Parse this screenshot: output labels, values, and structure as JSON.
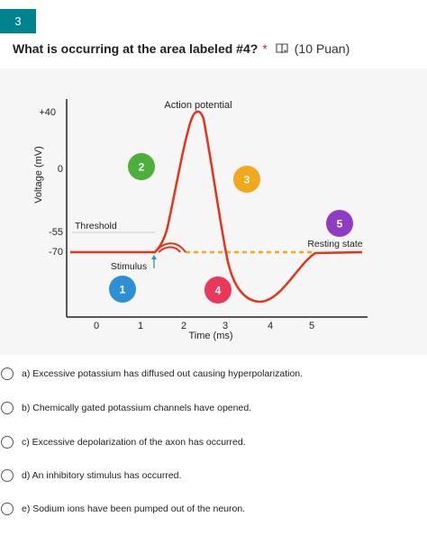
{
  "question": {
    "number": "3",
    "title": "What is occurring at the area labeled #4?",
    "required_mark": "*",
    "points": "(10 Puan)"
  },
  "figure": {
    "title": "Action potential",
    "y_axis_label": "Voltage (mV)",
    "x_axis_label": "Time (ms)",
    "y_ticks": [
      "+40",
      "0",
      "-55",
      "-70"
    ],
    "x_ticks": [
      "0",
      "1",
      "2",
      "3",
      "4",
      "5"
    ],
    "threshold_label": "Threshold",
    "resting_label": "Resting state",
    "stimulus_label": "Stimulus",
    "markers": [
      {
        "label": "1",
        "color": "#2f8fd6"
      },
      {
        "label": "2",
        "color": "#4caf3a"
      },
      {
        "label": "3",
        "color": "#f2a81d"
      },
      {
        "label": "4",
        "color": "#e8395a"
      },
      {
        "label": "5",
        "color": "#8e3cc4"
      }
    ],
    "curve_color": "#e53319",
    "resting_dash_color": "#f2a81d"
  },
  "options": [
    {
      "label": "a) Excessive potassium has diffused out causing hyperpolarization."
    },
    {
      "label": "b) Chemically gated potassium channels have opened."
    },
    {
      "label": "c) Excessive depolarization of the axon has occurred."
    },
    {
      "label": "d) An inhibitory stimulus has occurred."
    },
    {
      "label": "e) Sodium ions have been pumped out of the neuron."
    }
  ]
}
